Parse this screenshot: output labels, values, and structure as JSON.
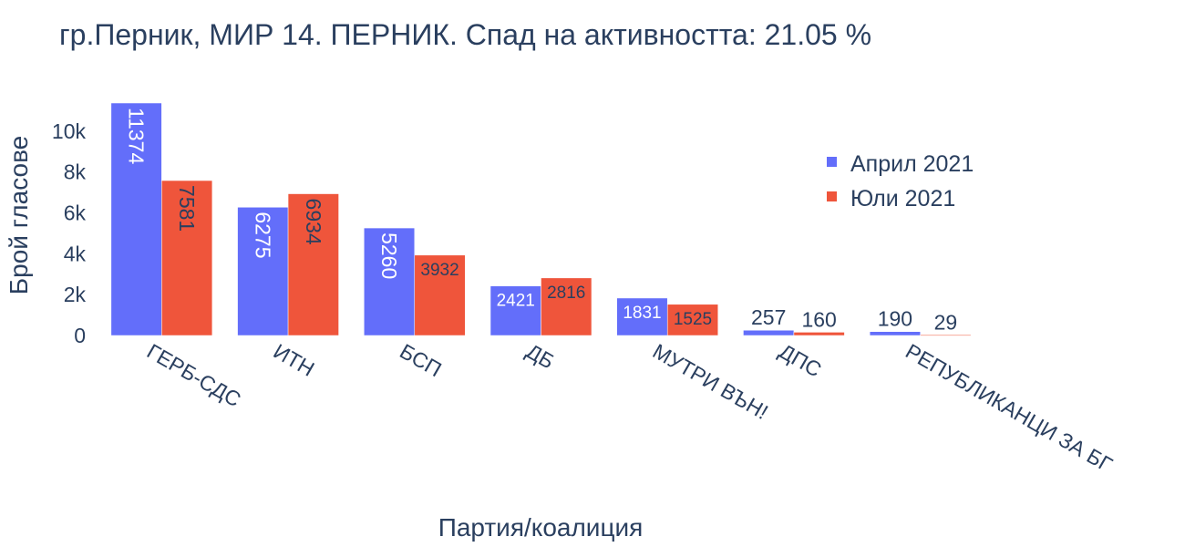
{
  "chart_data": {
    "type": "bar",
    "title": "гр.Перник, МИР 14. ПЕРНИК. Спад на активността: 21.05 %",
    "xlabel": "Партия/коалиция",
    "ylabel": "Брой гласове",
    "categories": [
      "ГЕРБ-СДС",
      "ИТН",
      "БСП",
      "ДБ",
      "МУТРИ ВЪН!",
      "ДПС",
      "РЕПУБЛИКАНЦИ ЗА БГ"
    ],
    "series": [
      {
        "name": "Април 2021",
        "color": "#636efa",
        "values": [
          11374,
          6275,
          5260,
          2421,
          1831,
          257,
          190
        ]
      },
      {
        "name": "Юли 2021",
        "color": "#ef553b",
        "values": [
          7581,
          6934,
          3932,
          2816,
          1525,
          160,
          29
        ]
      }
    ],
    "ylim": [
      0,
      11374
    ],
    "yticks": [
      0,
      2000,
      4000,
      6000,
      8000,
      10000
    ],
    "ytick_labels": [
      "0",
      "2k",
      "4k",
      "6k",
      "8k",
      "10k"
    ],
    "legend_position": "top-right",
    "grid": false,
    "data_labels": true
  }
}
